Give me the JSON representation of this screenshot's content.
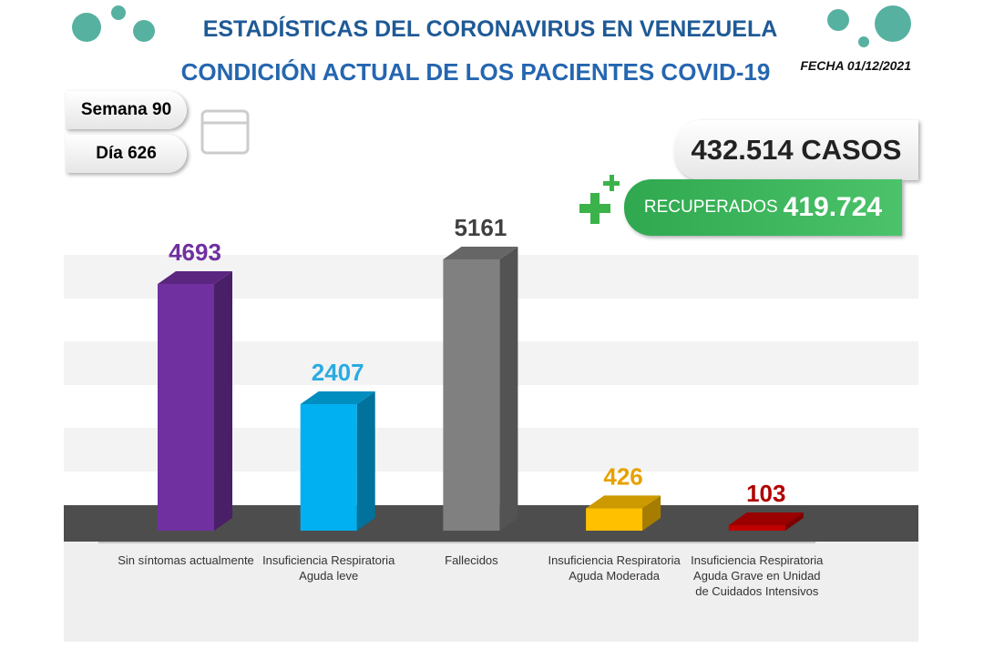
{
  "header": {
    "title": "ESTADÍSTICAS DEL CORONAVIRUS EN VENEZUELA",
    "subtitle": "CONDICIÓN ACTUAL DE LOS PACIENTES COVID-19",
    "date": "FECHA 01/12/2021"
  },
  "week": "Semana 90",
  "day": "Día 626",
  "cases": "432.514 CASOS",
  "recovered_label": "RECUPERADOS",
  "recovered_value": "419.724",
  "chart_data": {
    "type": "bar",
    "categories": [
      "Sin síntomas actualmente",
      "Insuficiencia Respiratoria Aguda leve",
      "Fallecidos",
      "Insuficiencia Respiratoria Aguda Moderada",
      "Insuficiencia Respiratoria Aguda Grave en Unidad de Cuidados Intensivos"
    ],
    "values": [
      4693,
      2407,
      5161,
      426,
      103
    ],
    "colors": [
      "#7030a0",
      "#00b0f0",
      "#808080",
      "#ffc000",
      "#c00000"
    ],
    "label_colors": [
      "#7030a0",
      "#29abe2",
      "#404040",
      "#e6a100",
      "#b00000"
    ]
  }
}
